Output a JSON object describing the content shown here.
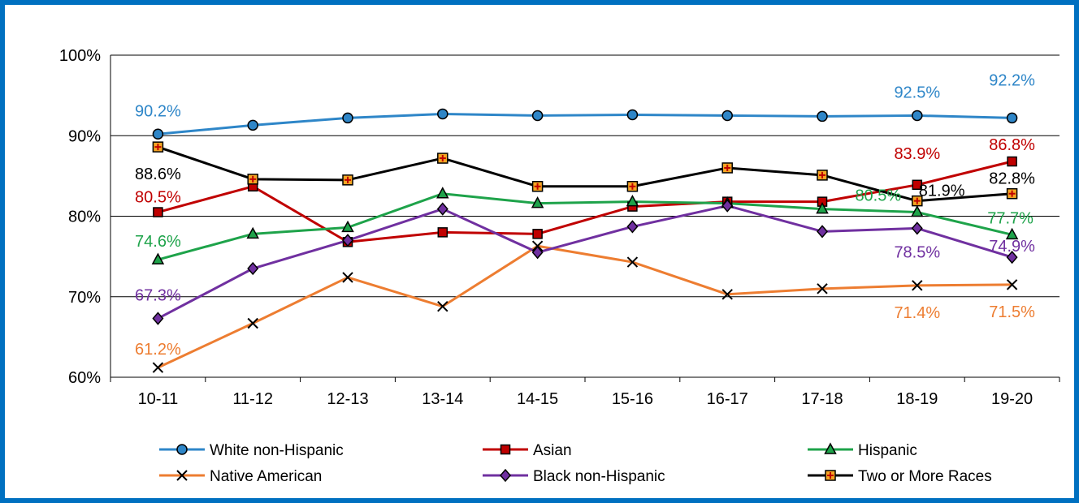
{
  "chart_data": {
    "type": "line",
    "title": "",
    "xlabel": "",
    "ylabel": "",
    "categories": [
      "10-11",
      "11-12",
      "12-13",
      "13-14",
      "14-15",
      "15-16",
      "16-17",
      "17-18",
      "18-19",
      "19-20"
    ],
    "y_ticks": [
      "60%",
      "70%",
      "80%",
      "90%",
      "100%"
    ],
    "ylim": [
      60,
      100
    ],
    "grid": "horizontal",
    "legend_position": "bottom",
    "series": [
      {
        "name": "White non-Hispanic",
        "color": "#2e86c8",
        "marker": "circle",
        "values": [
          90.2,
          91.3,
          92.2,
          92.7,
          92.5,
          92.6,
          92.5,
          92.4,
          92.5,
          92.2
        ],
        "labels": [
          {
            "index": 0,
            "text": "90.2%"
          },
          {
            "index": 8,
            "text": "92.5%"
          },
          {
            "index": 9,
            "text": "92.2%"
          }
        ]
      },
      {
        "name": "Asian",
        "color": "#c00000",
        "marker": "square",
        "values": [
          80.5,
          83.7,
          76.8,
          78.0,
          77.8,
          81.2,
          81.8,
          81.8,
          83.9,
          86.8
        ],
        "labels": [
          {
            "index": 0,
            "text": "80.5%"
          },
          {
            "index": 8,
            "text": "83.9%"
          },
          {
            "index": 9,
            "text": "86.8%"
          }
        ]
      },
      {
        "name": "Hispanic",
        "color": "#1ea34a",
        "marker": "triangle",
        "values": [
          74.6,
          77.8,
          78.6,
          82.8,
          81.6,
          81.8,
          81.6,
          80.9,
          80.5,
          77.7
        ],
        "labels": [
          {
            "index": 0,
            "text": "74.6%"
          },
          {
            "index": 8,
            "text": "80.5%"
          },
          {
            "index": 9,
            "text": "77.7%"
          }
        ]
      },
      {
        "name": "Native American",
        "color": "#ed7d31",
        "marker": "x",
        "values": [
          61.2,
          66.7,
          72.4,
          68.8,
          76.3,
          74.3,
          70.3,
          71.0,
          71.4,
          71.5
        ],
        "labels": [
          {
            "index": 0,
            "text": "61.2%"
          },
          {
            "index": 8,
            "text": "71.4%"
          },
          {
            "index": 9,
            "text": "71.5%"
          }
        ]
      },
      {
        "name": "Black non-Hispanic",
        "color": "#7030a0",
        "marker": "diamond",
        "values": [
          67.3,
          73.5,
          77.0,
          80.9,
          75.5,
          78.7,
          81.3,
          78.1,
          78.5,
          74.9
        ],
        "labels": [
          {
            "index": 0,
            "text": "67.3%"
          },
          {
            "index": 8,
            "text": "78.5%"
          },
          {
            "index": 9,
            "text": "74.9%"
          }
        ]
      },
      {
        "name": "Two or More Races",
        "color": "#000000",
        "marker": "plus-square",
        "values": [
          88.6,
          84.6,
          84.5,
          87.2,
          83.7,
          83.7,
          86.0,
          85.1,
          81.9,
          82.8
        ],
        "labels": [
          {
            "index": 0,
            "text": "88.6%"
          },
          {
            "index": 8,
            "text": "81.9%"
          },
          {
            "index": 9,
            "text": "82.8%"
          }
        ]
      }
    ]
  }
}
